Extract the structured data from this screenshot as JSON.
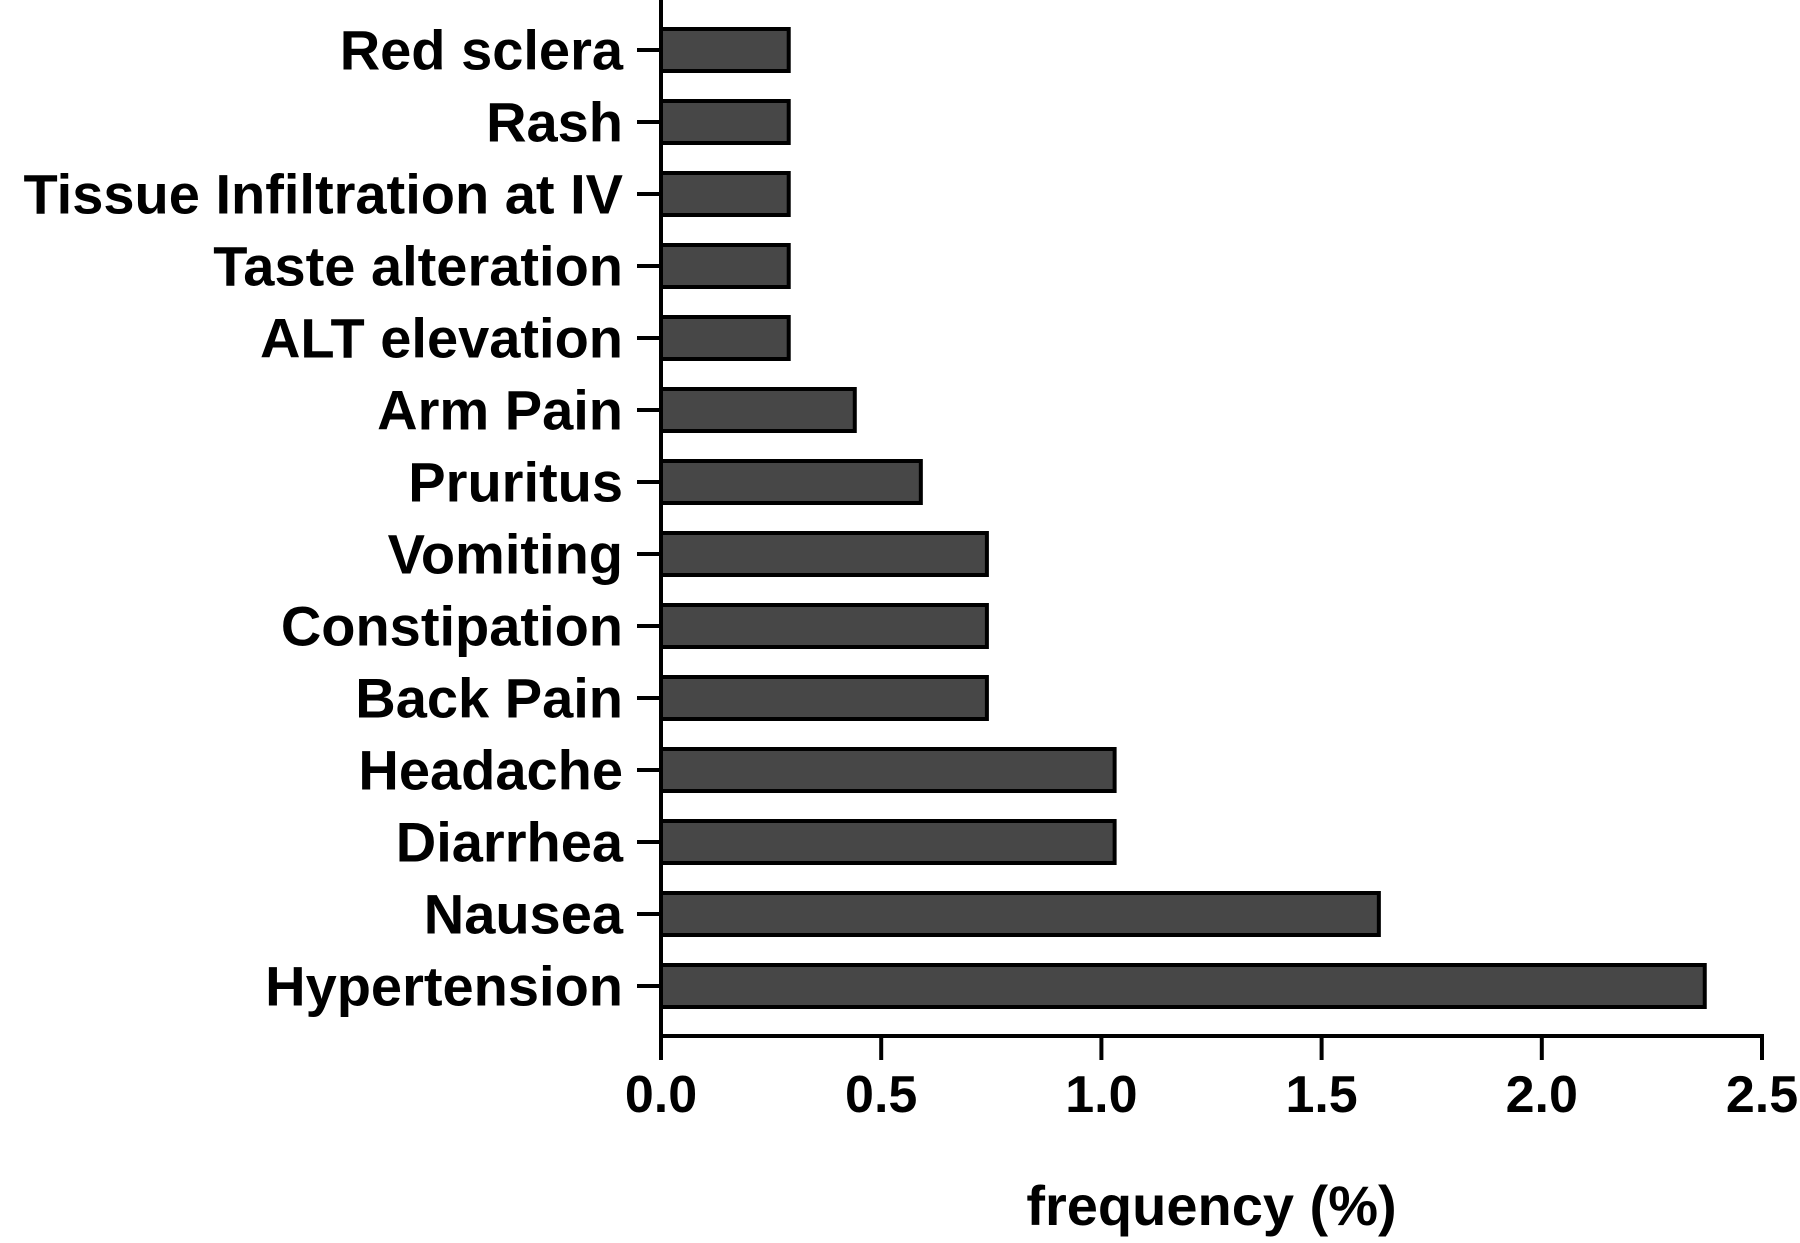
{
  "chart_data": {
    "type": "bar",
    "orientation": "horizontal",
    "categories": [
      "Red sclera",
      "Rash",
      "Tissue Infiltration at IV",
      "Taste alteration",
      "ALT elevation",
      "Arm Pain",
      "Pruritus",
      "Vomiting",
      "Constipation",
      "Back Pain",
      "Headache",
      "Diarrhea",
      "Nausea",
      "Hypertension"
    ],
    "values": [
      0.29,
      0.29,
      0.29,
      0.29,
      0.29,
      0.44,
      0.59,
      0.74,
      0.74,
      0.74,
      1.03,
      1.03,
      1.63,
      2.37
    ],
    "xlabel": "frequency (%)",
    "ylabel": "",
    "title": "",
    "xlim": [
      0,
      2.5
    ],
    "xticks": [
      "0.0",
      "0.5",
      "1.0",
      "1.5",
      "2.0",
      "2.5"
    ],
    "grid": false,
    "legend": "none",
    "colors": {
      "bar_fill": "#474747",
      "bar_stroke": "#000000",
      "axis": "#000000"
    }
  }
}
